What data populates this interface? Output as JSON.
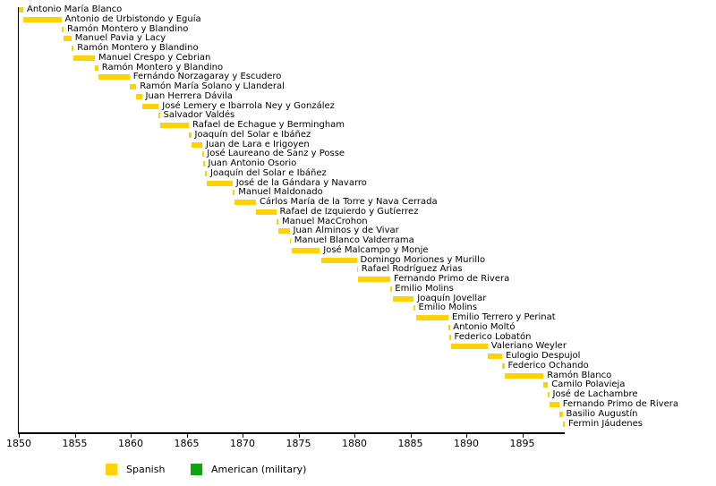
{
  "chart_data": {
    "type": "bar",
    "subtype": "horizontal-timeline-gantt",
    "title": "",
    "xlabel": "",
    "ylabel": "",
    "grid": false,
    "x_axis": {
      "min": 1850,
      "max": 1898.8,
      "tick_interval": 5,
      "ticks": [
        1850,
        1855,
        1860,
        1865,
        1870,
        1875,
        1880,
        1885,
        1890,
        1895
      ]
    },
    "legend": {
      "position": "bottom",
      "items": [
        {
          "label": "Spanish",
          "color": "#FDD306"
        },
        {
          "label": "American (military)",
          "color": "#0AA50F"
        }
      ]
    },
    "series": [
      {
        "name": "Antonio María Blanco",
        "start": 1850.0,
        "end": 1850.4,
        "group": "Spanish"
      },
      {
        "name": "Antonio de Urbistondo y Eguía",
        "start": 1850.4,
        "end": 1853.8,
        "group": "Spanish"
      },
      {
        "name": "Ramón Montero y Blandino",
        "start": 1853.8,
        "end": 1854.0,
        "group": "Spanish"
      },
      {
        "name": "Manuel Pavia y Lacy",
        "start": 1854.0,
        "end": 1854.7,
        "group": "Spanish"
      },
      {
        "name": "Ramón Montero y Blandino",
        "start": 1854.7,
        "end": 1854.9,
        "group": "Spanish"
      },
      {
        "name": "Manuel Crespo y Cebrian",
        "start": 1854.9,
        "end": 1856.8,
        "group": "Spanish"
      },
      {
        "name": "Ramón Montero y Blandino",
        "start": 1856.8,
        "end": 1857.1,
        "group": "Spanish"
      },
      {
        "name": "Fernándo Norzagaray y Escudero",
        "start": 1857.1,
        "end": 1859.9,
        "group": "Spanish"
      },
      {
        "name": "Ramón María Solano y Llanderal",
        "start": 1859.9,
        "end": 1860.5,
        "group": "Spanish"
      },
      {
        "name": "Juan Herrera Dávila",
        "start": 1860.5,
        "end": 1861.0,
        "group": "Spanish"
      },
      {
        "name": "José Lemery e Ibarrola Ney y González",
        "start": 1861.0,
        "end": 1862.5,
        "group": "Spanish"
      },
      {
        "name": "Salvador Valdés",
        "start": 1862.5,
        "end": 1862.6,
        "group": "Spanish"
      },
      {
        "name": "Rafael de Echague y Bermingham",
        "start": 1862.6,
        "end": 1865.2,
        "group": "Spanish"
      },
      {
        "name": "Joaquín del Solar e Ibáñez",
        "start": 1865.2,
        "end": 1865.4,
        "group": "Spanish"
      },
      {
        "name": "Juan de Lara e Irigoyen",
        "start": 1865.4,
        "end": 1866.4,
        "group": "Spanish"
      },
      {
        "name": "José Laureano de Sanz y Posse",
        "start": 1866.4,
        "end": 1866.5,
        "group": "Spanish"
      },
      {
        "name": "Juan Antonio Osorio",
        "start": 1866.5,
        "end": 1866.6,
        "group": "Spanish"
      },
      {
        "name": "Joaquín del Solar e Ibáñez",
        "start": 1866.6,
        "end": 1866.8,
        "group": "Spanish"
      },
      {
        "name": "José de la Gándara y Navarro",
        "start": 1866.8,
        "end": 1869.1,
        "group": "Spanish"
      },
      {
        "name": "Manuel Maldonado",
        "start": 1869.1,
        "end": 1869.3,
        "group": "Spanish"
      },
      {
        "name": "Cárlos María de la Torre y Nava Cerrada",
        "start": 1869.3,
        "end": 1871.2,
        "group": "Spanish"
      },
      {
        "name": "Rafael de Izquierdo y Gutíerrez",
        "start": 1871.2,
        "end": 1873.0,
        "group": "Spanish"
      },
      {
        "name": "Manuel MacCrohon",
        "start": 1873.0,
        "end": 1873.2,
        "group": "Spanish"
      },
      {
        "name": "Juan Alminos y de Vivar",
        "start": 1873.2,
        "end": 1874.2,
        "group": "Spanish"
      },
      {
        "name": "Manuel Blanco Valderrama",
        "start": 1874.2,
        "end": 1874.3,
        "group": "Spanish"
      },
      {
        "name": "José Malcampo y Monje",
        "start": 1874.4,
        "end": 1876.9,
        "group": "Spanish"
      },
      {
        "name": "Domingo Moriones y Murillo",
        "start": 1877.0,
        "end": 1880.2,
        "group": "Spanish"
      },
      {
        "name": "Rafael Rodríguez Arias",
        "start": 1880.2,
        "end": 1880.3,
        "group": "Spanish"
      },
      {
        "name": "Fernando Primo de Rivera",
        "start": 1880.3,
        "end": 1883.2,
        "group": "Spanish"
      },
      {
        "name": "Emilio Molins",
        "start": 1883.2,
        "end": 1883.3,
        "group": "Spanish"
      },
      {
        "name": "Joaquín Jovellar",
        "start": 1883.4,
        "end": 1885.3,
        "group": "Spanish"
      },
      {
        "name": "Emilio Molins",
        "start": 1885.3,
        "end": 1885.4,
        "group": "Spanish"
      },
      {
        "name": "Emilio Terrero y Perinat",
        "start": 1885.5,
        "end": 1888.4,
        "group": "Spanish"
      },
      {
        "name": "Antonio Moltó",
        "start": 1888.4,
        "end": 1888.5,
        "group": "Spanish"
      },
      {
        "name": "Federico Lobatón",
        "start": 1888.5,
        "end": 1888.6,
        "group": "Spanish"
      },
      {
        "name": "Valeriano Weyler",
        "start": 1888.6,
        "end": 1891.9,
        "group": "Spanish"
      },
      {
        "name": "Eulogio Despujol",
        "start": 1891.9,
        "end": 1893.2,
        "group": "Spanish"
      },
      {
        "name": "Federico Ochando",
        "start": 1893.2,
        "end": 1893.4,
        "group": "Spanish"
      },
      {
        "name": "Ramón Blanco",
        "start": 1893.4,
        "end": 1896.9,
        "group": "Spanish"
      },
      {
        "name": "Camilo Polavieja",
        "start": 1896.9,
        "end": 1897.3,
        "group": "Spanish"
      },
      {
        "name": "José de Lachambre",
        "start": 1897.3,
        "end": 1897.4,
        "group": "Spanish"
      },
      {
        "name": "Fernando Primo de Rivera",
        "start": 1897.4,
        "end": 1898.3,
        "group": "Spanish"
      },
      {
        "name": "Basilio Augustín",
        "start": 1898.3,
        "end": 1898.6,
        "group": "Spanish"
      },
      {
        "name": "Fermin Jáudenes",
        "start": 1898.6,
        "end": 1898.8,
        "group": "Spanish"
      }
    ]
  },
  "colors": {
    "background": "#FFFFFF",
    "axis": "#000000",
    "text": "#000000",
    "spanish": "#FDD306",
    "american_military": "#0AA50F"
  }
}
